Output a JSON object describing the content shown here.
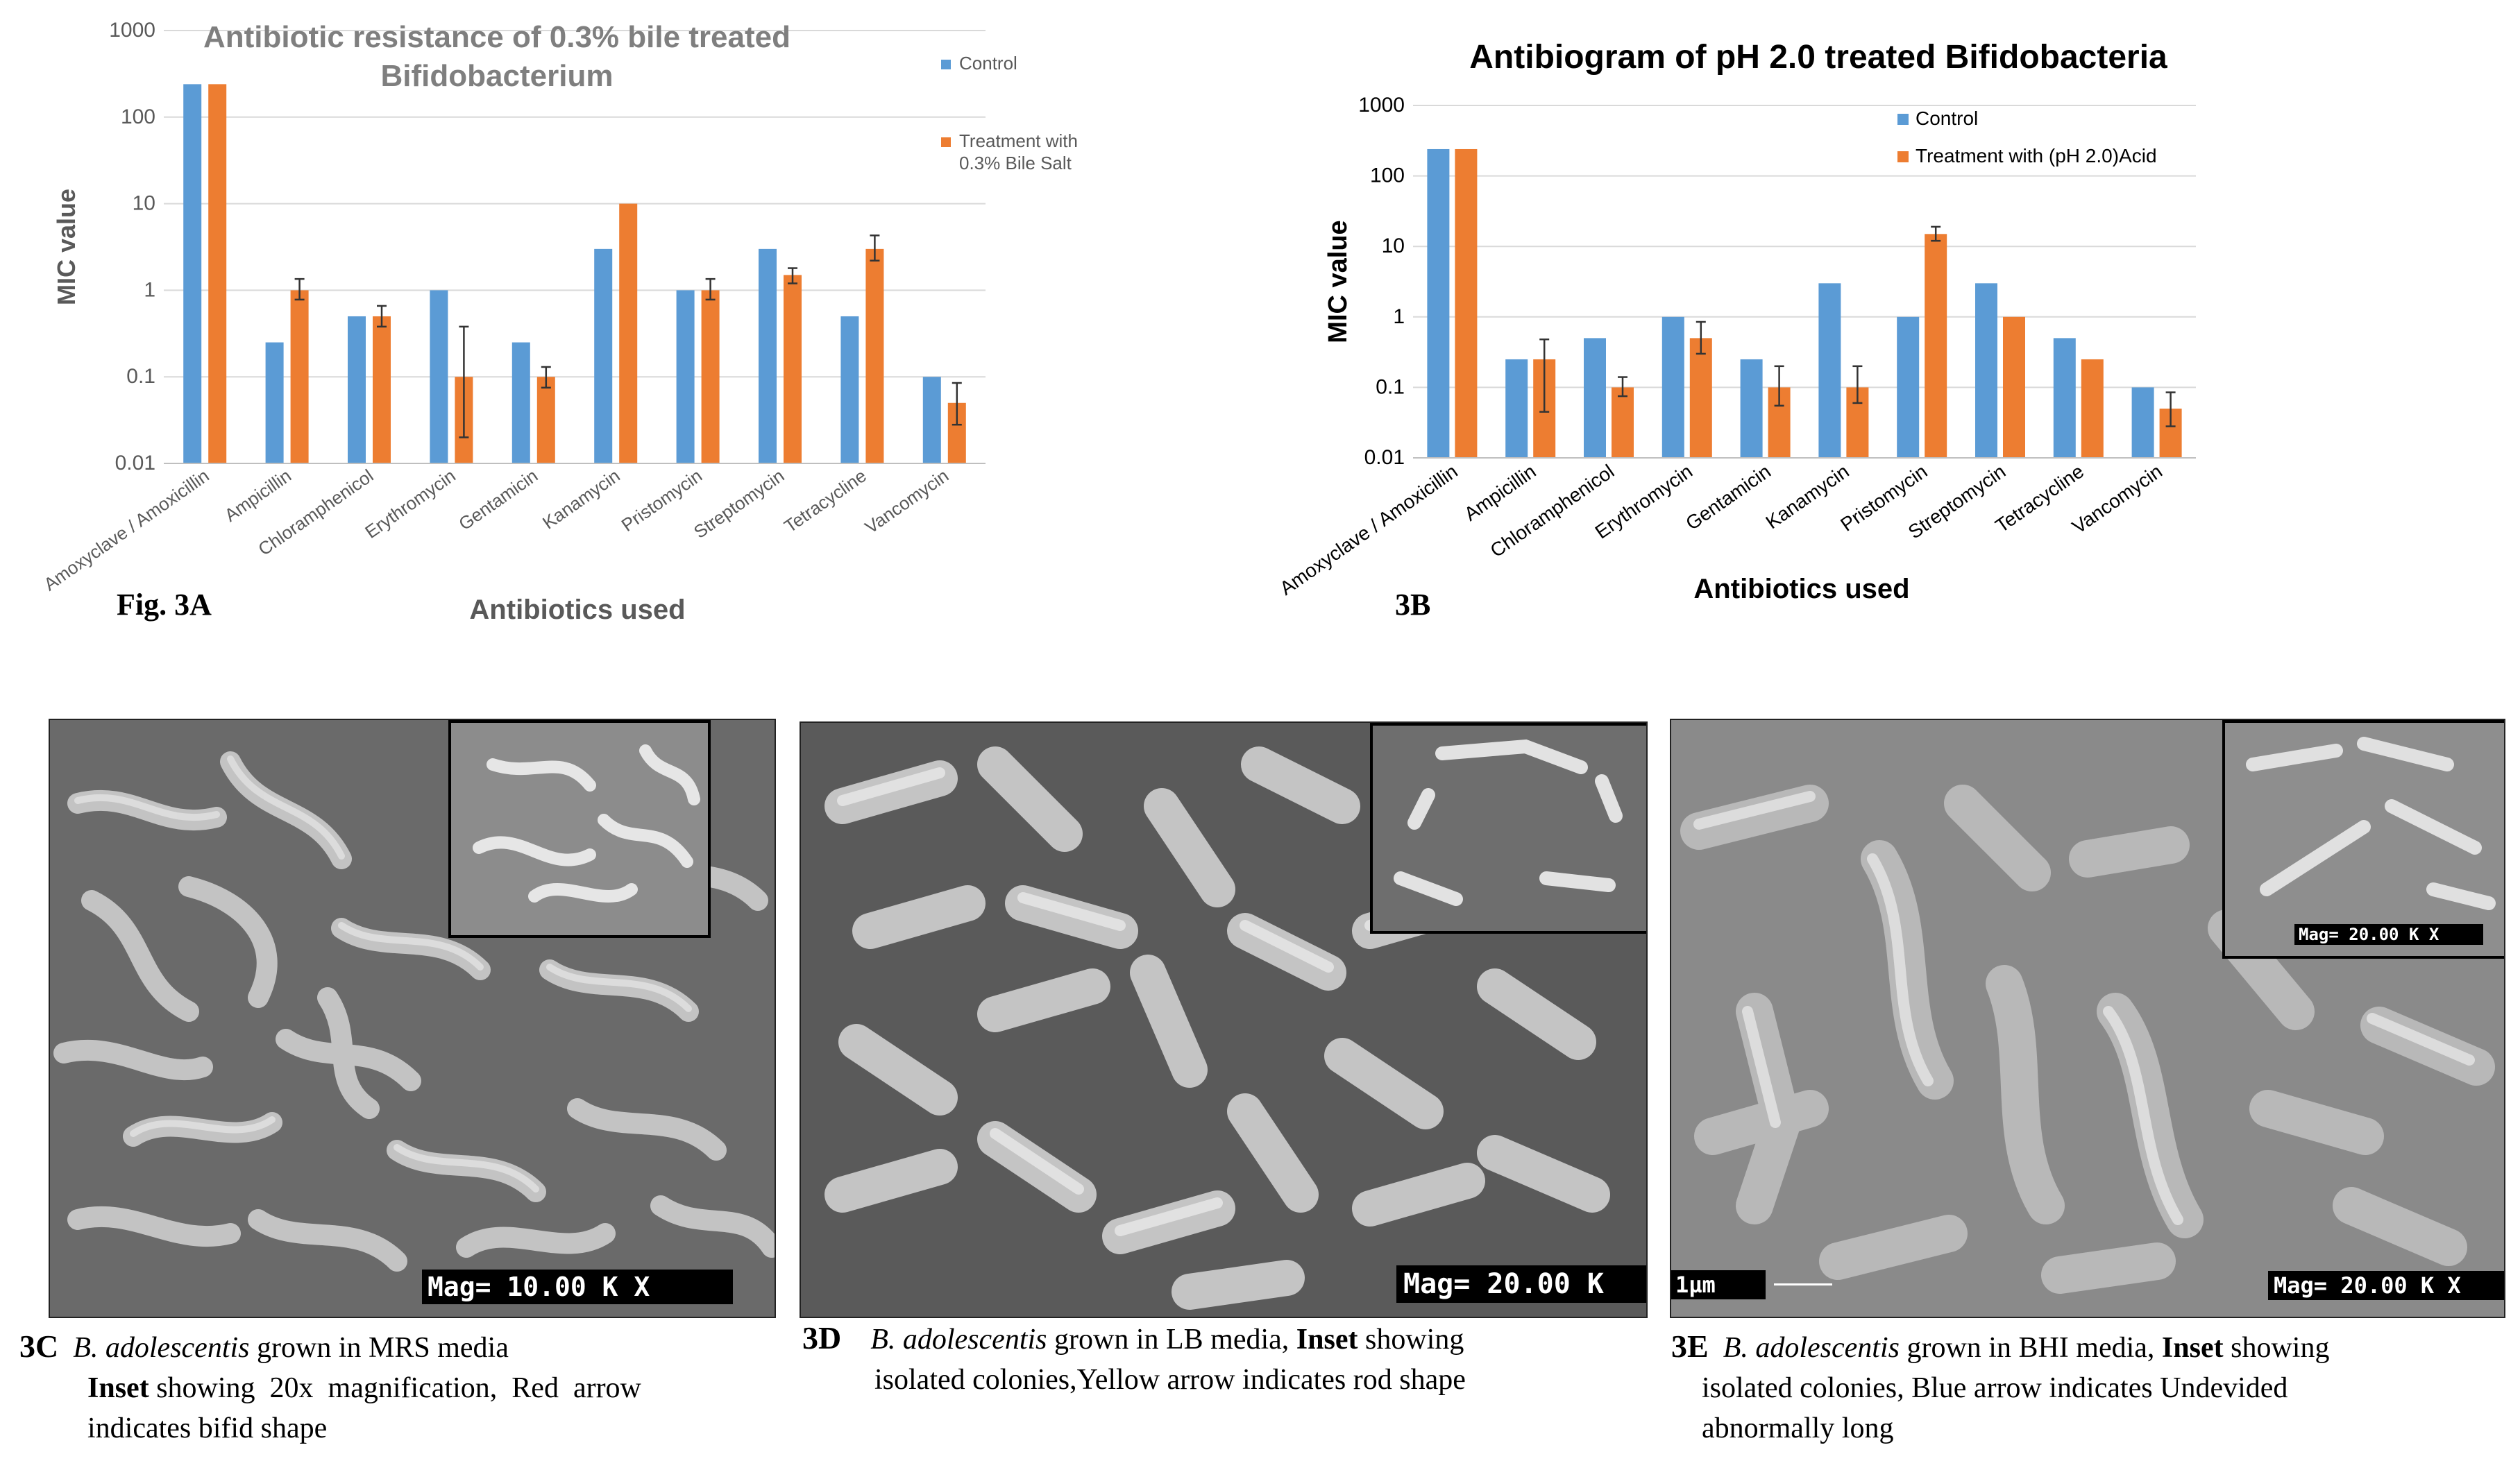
{
  "charts": {
    "A": {
      "title_line1": "Antibiotic resistance of 0.3% bile treated",
      "title_line2": "Bifidobacterium",
      "ylabel": "MIC value",
      "xlabel": "Antibiotics used",
      "fig_label": "Fig. 3A",
      "legend_control": "Control",
      "legend_treat_line1": "Treatment with",
      "legend_treat_line2": "0.3% Bile Salt"
    },
    "B": {
      "title": "Antibiogram of pH 2.0 treated Bifidobacteria",
      "ylabel": "MIC value",
      "xlabel": "Antibiotics used",
      "fig_label": "3B",
      "legend_control": "Control",
      "legend_treat": "Treatment with (pH 2.0)Acid"
    }
  },
  "chart_data": [
    {
      "id": "3A",
      "type": "bar",
      "title": "Antibiotic resistance of 0.3% bile treated Bifidobacterium",
      "xlabel": "Antibiotics used",
      "ylabel": "MIC value",
      "yscale": "log",
      "ylim": [
        0.01,
        1000
      ],
      "yticks": [
        "0.01",
        "0.1",
        "1",
        "10",
        "100",
        "1000"
      ],
      "categories": [
        "Amoxyclave / Amoxicillin",
        "Ampicillin",
        "Chloramphenicol",
        "Erythromycin",
        "Gentamicin",
        "Kanamycin",
        "Pristomycin",
        "Streptomycin",
        "Tetracycline",
        "Vancomycin"
      ],
      "series": [
        {
          "name": "Control",
          "color": "#5b9bd5",
          "values": [
            240,
            0.25,
            0.5,
            1,
            0.25,
            3,
            1,
            3,
            0.5,
            0.1
          ]
        },
        {
          "name": "Treatment with 0.3% Bile Salt",
          "color": "#ed7d31",
          "values": [
            240,
            1,
            0.5,
            0.1,
            0.1,
            10,
            1,
            1.5,
            3,
            0.05
          ],
          "error_low": [
            null,
            0.78,
            0.38,
            0.02,
            0.075,
            null,
            0.78,
            1.2,
            2.2,
            0.028
          ],
          "error_high": [
            null,
            1.35,
            0.66,
            0.38,
            0.13,
            null,
            1.35,
            1.8,
            4.3,
            0.085
          ]
        }
      ],
      "legend": "right",
      "grid": "horizontal"
    },
    {
      "id": "3B",
      "type": "bar",
      "title": "Antibiogram of pH 2.0 treated Bifidobacteria",
      "xlabel": "Antibiotics used",
      "ylabel": "MIC value",
      "yscale": "log",
      "ylim": [
        0.01,
        1000
      ],
      "yticks": [
        "0.01",
        "0.1",
        "1",
        "10",
        "100",
        "1000"
      ],
      "categories": [
        "Amoxyclave / Amoxicillin",
        "Ampicillin",
        "Chloramphenicol",
        "Erythromycin",
        "Gentamicin",
        "Kanamycin",
        "Pristomycin",
        "Streptomycin",
        "Tetracycline",
        "Vancomycin"
      ],
      "series": [
        {
          "name": "Control",
          "color": "#5b9bd5",
          "values": [
            240,
            0.25,
            0.5,
            1,
            0.25,
            3,
            1,
            3,
            0.5,
            0.1
          ]
        },
        {
          "name": "Treatment with (pH 2.0)Acid",
          "color": "#ed7d31",
          "values": [
            240,
            0.25,
            0.1,
            0.5,
            0.1,
            0.1,
            15,
            1,
            0.25,
            0.05
          ],
          "error_low": [
            null,
            0.045,
            0.075,
            0.3,
            0.055,
            0.06,
            12,
            null,
            null,
            0.028
          ],
          "error_high": [
            null,
            0.48,
            0.14,
            0.85,
            0.2,
            0.2,
            19,
            null,
            null,
            0.085
          ]
        }
      ],
      "legend": "top-right",
      "grid": "horizontal"
    }
  ],
  "images": {
    "C": {
      "mag_text": "Mag= 10.00 K X"
    },
    "D": {
      "mag_text": "Mag= 20.00 K"
    },
    "E": {
      "mag_text": "Mag= 20.00 K X",
      "scale_text": "1µm",
      "inset_mag_text": "Mag= 20.00 K X"
    }
  },
  "captions": {
    "C": {
      "label": "3C",
      "species": "B. adolescentis",
      "line1_rest": " grown in MRS media",
      "inset_word": "Inset",
      "line2_rest": " showing  20x  magnification,  Red  arrow",
      "line3": "indicates bifid shape"
    },
    "D": {
      "label": "3D",
      "species": "B. adolescentis",
      "line1_rest": " grown in LB media, ",
      "inset_word": "Inset",
      "line1_tail": " showing",
      "line2": "isolated colonies,Yellow arrow indicates rod shape"
    },
    "E": {
      "label": "3E",
      "species": "B. adolescentis",
      "line1_rest": " grown in BHI media, ",
      "inset_word": "Inset",
      "line1_tail": " showing",
      "line2": "isolated colonies, Blue arrow indicates Undevided",
      "line3": "abnormally long"
    }
  },
  "colors": {
    "control": "#5b9bd5",
    "treatment": "#ed7d31",
    "title_grey": "#595959",
    "axis_text": "#595959"
  }
}
